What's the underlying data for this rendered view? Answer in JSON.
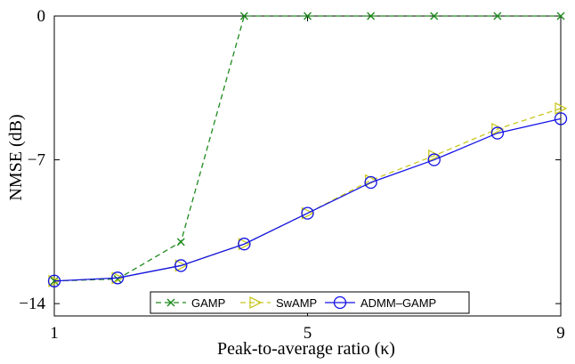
{
  "chart_data": {
    "type": "line",
    "xlabel": "Peak-to-average ratio (κ)",
    "ylabel": "NMSE (dB)",
    "xlim": [
      1,
      9
    ],
    "ylim": [
      -14.6,
      0
    ],
    "xticks": [
      1,
      5,
      9
    ],
    "yticks": [
      0,
      -7,
      -14
    ],
    "x_tick_labels": [
      "1",
      "5",
      "9"
    ],
    "y_tick_labels": [
      "0",
      "−7",
      "−14"
    ],
    "grid": false,
    "legend_position": "bottom-center",
    "series": [
      {
        "name": "GAMP",
        "color": "#1e8a1e",
        "marker": "x",
        "line_style": "dashed",
        "x": [
          1,
          2,
          3,
          4,
          5,
          6,
          7,
          8,
          9
        ],
        "y": [
          -12.9,
          -12.8,
          -11.0,
          0,
          0,
          0,
          0,
          0,
          0
        ]
      },
      {
        "name": "SwAMP",
        "color": "#c8c820",
        "marker": "triangle-right",
        "line_style": "dashed",
        "x": [
          1,
          2,
          3,
          4,
          5,
          6,
          7,
          8,
          9
        ],
        "y": [
          -12.9,
          -12.75,
          -12.15,
          -11.1,
          -9.6,
          -8.0,
          -6.8,
          -5.5,
          -4.5
        ]
      },
      {
        "name": "ADMM–GAMP",
        "color": "#1212e6",
        "marker": "circle",
        "line_style": "solid",
        "x": [
          1,
          2,
          3,
          4,
          5,
          6,
          7,
          8,
          9
        ],
        "y": [
          -12.9,
          -12.75,
          -12.15,
          -11.1,
          -9.6,
          -8.1,
          -7.0,
          -5.7,
          -5.0
        ]
      }
    ]
  }
}
